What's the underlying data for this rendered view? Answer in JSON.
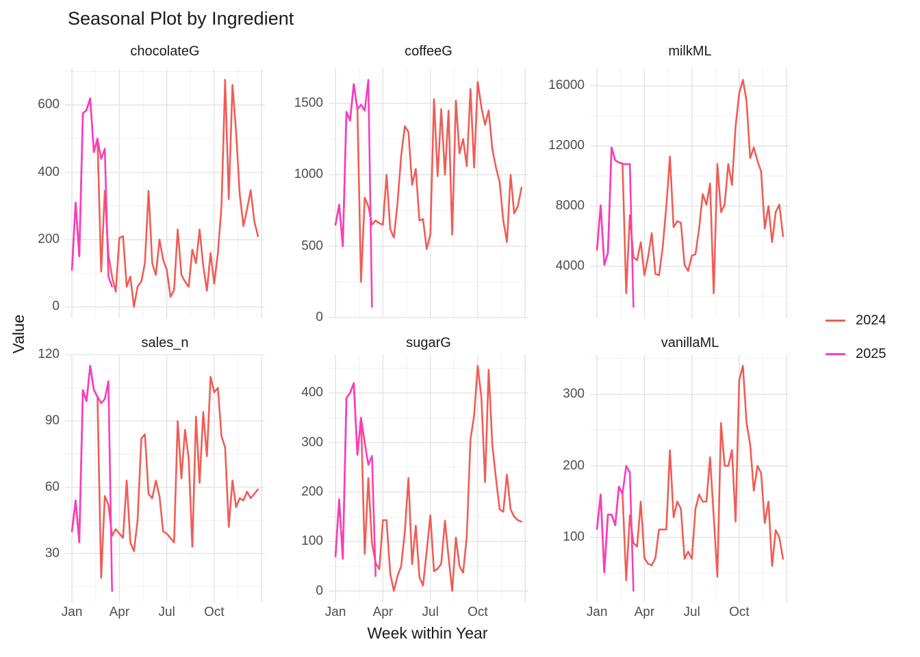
{
  "title": "Seasonal Plot by Ingredient",
  "axes": {
    "x_title": "Week within Year",
    "y_title": "Value"
  },
  "legend": {
    "position": "right",
    "items": [
      {
        "label": "2024",
        "color": "#f05c55"
      },
      {
        "label": "2025",
        "color": "#f93cbe"
      }
    ]
  },
  "style": {
    "background": "#ffffff",
    "grid_major": "#e3e3e3",
    "grid_minor": "#efefef",
    "axis_text": "#4d4d4d",
    "text": "#1a1a1a"
  },
  "chart_data": {
    "type": "line",
    "x_unit": "week_of_year",
    "x_range": [
      1,
      52
    ],
    "x_ticks": [
      {
        "week": 1,
        "label": "Jan"
      },
      {
        "week": 14,
        "label": "Apr"
      },
      {
        "week": 27,
        "label": "Jul"
      },
      {
        "week": 40,
        "label": "Oct"
      }
    ],
    "xlabel": "Week within Year",
    "ylabel": "Value",
    "grid": true,
    "legend_position": "right",
    "facets": [
      {
        "title": "chocolateG",
        "yticks": [
          0,
          200,
          400,
          600
        ],
        "series": [
          {
            "name": "2024",
            "color": "#f05c55",
            "values": [
              110,
              310,
              150,
              575,
              585,
              620,
              460,
              500,
              105,
              345,
              155,
              90,
              45,
              205,
              210,
              60,
              90,
              0,
              60,
              75,
              130,
              345,
              130,
              95,
              200,
              140,
              110,
              30,
              50,
              230,
              95,
              75,
              60,
              170,
              130,
              230,
              122,
              48,
              160,
              69,
              160,
              300,
              675,
              320,
              660,
              520,
              335,
              240,
              290,
              347,
              255,
              210
            ]
          },
          {
            "name": "2025",
            "color": "#f93cbe",
            "values": [
              110,
              310,
              150,
              575,
              585,
              620,
              460,
              500,
              440,
              470,
              90,
              60
            ]
          }
        ]
      },
      {
        "title": "coffeeG",
        "yticks": [
          0,
          500,
          1000,
          1500
        ],
        "series": [
          {
            "name": "2024",
            "color": "#f05c55",
            "values": [
              650,
              790,
              500,
              1440,
              1380,
              1635,
              1460,
              250,
              840,
              780,
              650,
              680,
              660,
              650,
              1000,
              620,
              560,
              800,
              1130,
              1340,
              1300,
              930,
              1040,
              680,
              690,
              480,
              580,
              1530,
              990,
              1460,
              1000,
              1450,
              580,
              1520,
              1150,
              1250,
              1060,
              1600,
              1050,
              1650,
              1470,
              1350,
              1450,
              1180,
              1050,
              950,
              680,
              530,
              1000,
              730,
              780,
              910
            ]
          },
          {
            "name": "2025",
            "color": "#f93cbe",
            "values": [
              650,
              790,
              500,
              1440,
              1380,
              1635,
              1460,
              1490,
              1450,
              1665,
              75
            ]
          }
        ]
      },
      {
        "title": "milkML",
        "yticks": [
          4000,
          8000,
          12000,
          16000
        ],
        "series": [
          {
            "name": "2024",
            "color": "#f05c55",
            "values": [
              5100,
              8050,
              4100,
              4900,
              11900,
              11050,
              10900,
              10820,
              2200,
              7400,
              4600,
              4400,
              5600,
              3400,
              4600,
              6200,
              3500,
              3400,
              5200,
              8000,
              11300,
              6600,
              7000,
              6900,
              4100,
              3700,
              4700,
              4800,
              6500,
              8800,
              8100,
              9500,
              2200,
              10800,
              7600,
              8100,
              10800,
              9400,
              13300,
              15500,
              16400,
              15000,
              11200,
              11900,
              11000,
              10300,
              6500,
              8000,
              5600,
              7600,
              8100,
              6000
            ]
          },
          {
            "name": "2025",
            "color": "#f93cbe",
            "values": [
              5100,
              8050,
              4100,
              4900,
              11900,
              11050,
              10900,
              10820,
              10780,
              10800,
              1300
            ]
          }
        ]
      },
      {
        "title": "sales_n",
        "yticks": [
          30,
          60,
          90,
          120
        ],
        "series": [
          {
            "name": "2024",
            "color": "#f05c55",
            "values": [
              40,
              54,
              35,
              104,
              99,
              115,
              104,
              101,
              19,
              56,
              52,
              38,
              41,
              39,
              37,
              63,
              35,
              31,
              45,
              82,
              84,
              57,
              55,
              63,
              56,
              40,
              39,
              37,
              35,
              90,
              64,
              86,
              73,
              33,
              92,
              62,
              94,
              74,
              110,
              103,
              105,
              83,
              78,
              42,
              63,
              51,
              55,
              54,
              58,
              55,
              57,
              59
            ]
          },
          {
            "name": "2025",
            "color": "#f93cbe",
            "values": [
              40,
              54,
              35,
              104,
              99,
              115,
              104,
              101,
              98,
              100,
              108,
              13
            ]
          }
        ]
      },
      {
        "title": "sugarG",
        "yticks": [
          0,
          100,
          200,
          300,
          400
        ],
        "series": [
          {
            "name": "2024",
            "color": "#f05c55",
            "values": [
              70,
              185,
              65,
              390,
              400,
              420,
              275,
              350,
              75,
              228,
              96,
              57,
              44,
              143,
              143,
              35,
              0,
              30,
              50,
              120,
              228,
              54,
              132,
              28,
              11,
              80,
              153,
              40,
              45,
              55,
              142,
              68,
              0,
              108,
              50,
              37,
              110,
              306,
              354,
              455,
              390,
              220,
              447,
              295,
              227,
              165,
              160,
              235,
              165,
              150,
              143,
              140
            ]
          },
          {
            "name": "2025",
            "color": "#f93cbe",
            "values": [
              70,
              185,
              65,
              390,
              400,
              420,
              275,
              350,
              300,
              255,
              273,
              30
            ]
          }
        ]
      },
      {
        "title": "vanillaML",
        "yticks": [
          100,
          200,
          300
        ],
        "series": [
          {
            "name": "2024",
            "color": "#f05c55",
            "values": [
              112,
              160,
              51,
              132,
              132,
              117,
              171,
              161,
              40,
              131,
              92,
              87,
              150,
              71,
              63,
              61,
              71,
              111,
              111,
              111,
              222,
              128,
              150,
              140,
              70,
              80,
              70,
              140,
              160,
              150,
              150,
              212,
              130,
              45,
              260,
              200,
              200,
              222,
              122,
              320,
              340,
              260,
              230,
              165,
              200,
              190,
              120,
              150,
              60,
              110,
              100,
              70
            ]
          },
          {
            "name": "2025",
            "color": "#f93cbe",
            "values": [
              112,
              160,
              51,
              132,
              132,
              117,
              171,
              161,
              200,
              191,
              25
            ]
          }
        ]
      }
    ]
  }
}
